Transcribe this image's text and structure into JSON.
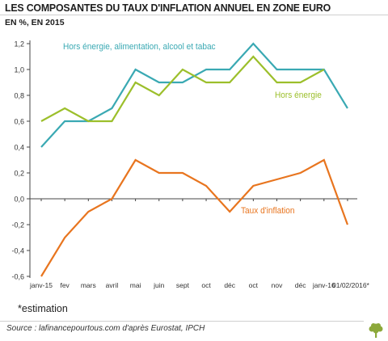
{
  "title": "LES COMPOSANTES DU TAUX D'INFLATION ANNUEL EN ZONE EURO",
  "subtitle": "EN %, EN 2015",
  "footnote": "*estimation",
  "source": "Source : lafinancepourtous.com d'après Eurostat, IPCH",
  "logo_icon": "tree-icon",
  "colors": {
    "core_exclu": "#3aa9b3",
    "core": "#9cbf2b",
    "headline": "#e8751f",
    "axis": "#444444",
    "tick_text": "#333333",
    "logo": "#8ca83a"
  },
  "chart_data": {
    "type": "line",
    "categories": [
      "janv-15",
      "fev",
      "mars",
      "avril",
      "mai",
      "juin",
      "sept",
      "oct",
      "déc",
      "oct",
      "nov",
      "déc",
      "janv-16",
      "01/02/2016*"
    ],
    "y_ticks": [
      "1,2",
      "1,0",
      "0,8",
      "0,6",
      "0,4",
      "0,2",
      "0,0",
      "-0,2",
      "-0,4",
      "-0,6"
    ],
    "ylim": [
      -0.6,
      1.2
    ],
    "grid": false,
    "series": [
      {
        "name": "Hors énergie, alimentation, alcool et tabac",
        "color_key": "core_exclu",
        "values": [
          0.4,
          0.6,
          0.6,
          0.7,
          1.0,
          0.9,
          0.9,
          1.0,
          1.0,
          1.2,
          1.0,
          1.0,
          1.0,
          0.7
        ]
      },
      {
        "name": "Hors énergie",
        "color_key": "core",
        "values": [
          0.6,
          0.7,
          0.6,
          0.6,
          0.9,
          0.8,
          1.0,
          0.9,
          0.9,
          1.1,
          0.9,
          0.9,
          1.0,
          null
        ]
      },
      {
        "name": "Taux d'inflation",
        "color_key": "headline",
        "values": [
          -0.6,
          -0.3,
          -0.1,
          0.0,
          0.3,
          0.2,
          0.2,
          0.1,
          -0.1,
          0.1,
          0.15,
          0.2,
          0.3,
          -0.2
        ]
      }
    ]
  }
}
